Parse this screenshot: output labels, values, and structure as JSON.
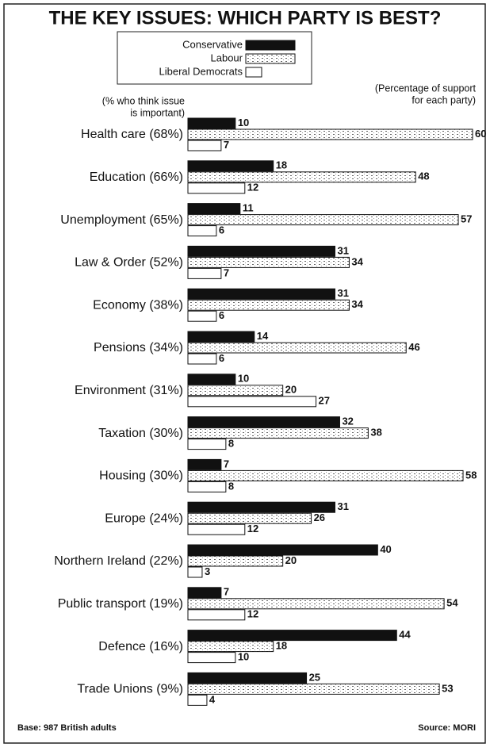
{
  "chart_data": {
    "type": "bar",
    "orientation": "horizontal",
    "title": "THE KEY ISSUES: WHICH PARTY IS BEST?",
    "note_left": [
      "(% who think issue",
      "is important)"
    ],
    "note_right": [
      "(Percentage of support",
      "for each party)"
    ],
    "footer_left": "Base: 987 British adults",
    "footer_right": "Source: MORI",
    "categories": [
      "Health care (68%)",
      "Education (66%)",
      "Unemployment (65%)",
      "Law & Order (52%)",
      "Economy (38%)",
      "Pensions (34%)",
      "Environment (31%)",
      "Taxation (30%)",
      "Housing (30%)",
      "Europe (24%)",
      "Northern Ireland (22%)",
      "Public transport (19%)",
      "Defence (16%)",
      "Trade Unions (9%)"
    ],
    "series": [
      {
        "name": "Conservative",
        "color": "#111111",
        "values": [
          10,
          18,
          11,
          31,
          31,
          14,
          10,
          32,
          7,
          31,
          40,
          7,
          44,
          25
        ]
      },
      {
        "name": "Labour",
        "color": "#bdbdbd",
        "values": [
          60,
          48,
          57,
          34,
          34,
          46,
          20,
          38,
          58,
          26,
          20,
          54,
          18,
          53
        ]
      },
      {
        "name": "Liberal Democrats",
        "color": "#ffffff",
        "values": [
          7,
          12,
          6,
          7,
          6,
          6,
          27,
          8,
          8,
          12,
          3,
          12,
          10,
          4
        ]
      }
    ]
  }
}
